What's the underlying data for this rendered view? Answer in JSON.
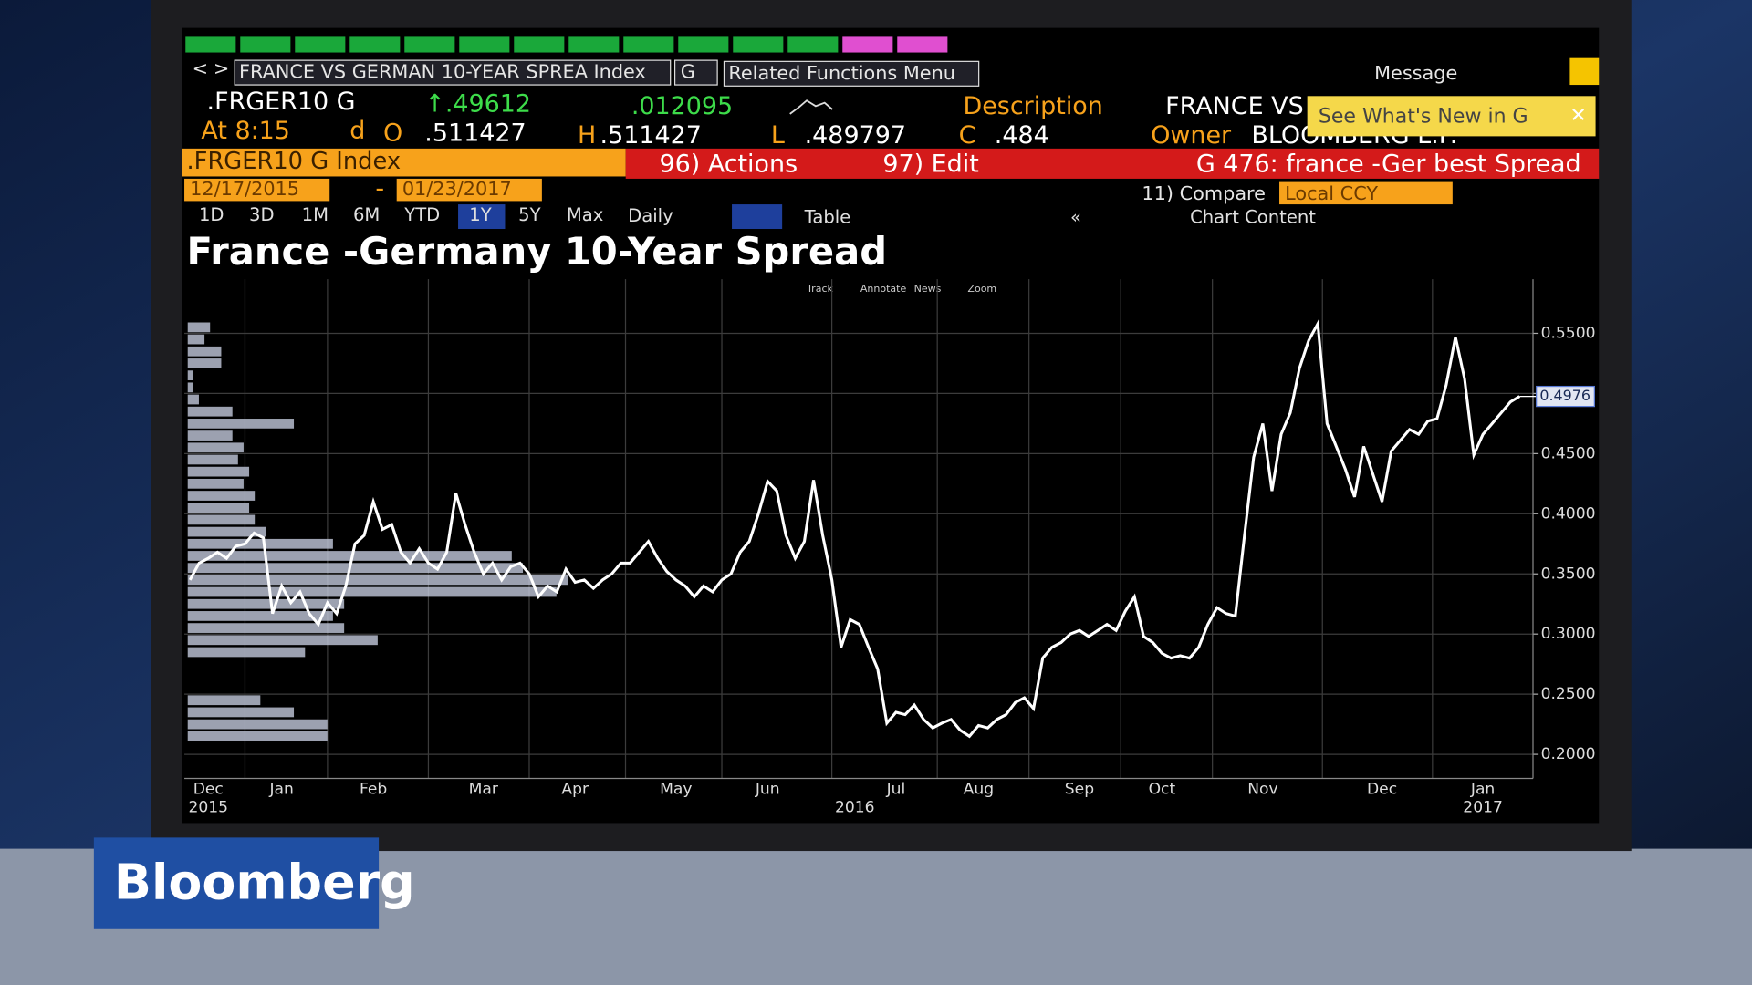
{
  "toolbar": {
    "security": "FRANCE VS GERMAN 10-YEAR SPREA Index",
    "yellow_key": "G",
    "related": "Related Functions Menu",
    "message": "Message"
  },
  "quote": {
    "ticker": ".FRGER10 G",
    "last": "↑.49612",
    "change": ".012095",
    "time": "At 8:15",
    "d": "d",
    "open_label": "O",
    "open": ".511427",
    "high_label": "H",
    "high": ".511427",
    "low_label": "L",
    "low": ".489797",
    "close_label": "C",
    "close": ".484",
    "description_label": "Description",
    "description": "FRANCE VS",
    "owner_label": "Owner",
    "owner": "BLOOMBERG L.P."
  },
  "popup": "See What's New in G",
  "command_bar": {
    "security": ".FRGER10 G Index",
    "actions": "96) Actions",
    "edit": "97) Edit",
    "function": "G 476: france -Ger best Spread"
  },
  "date_range": {
    "start": "12/17/2015",
    "separator": "-",
    "end": "01/23/2017"
  },
  "compare": "11) Compare",
  "currency": "Local CCY",
  "periods": [
    "1D",
    "3D",
    "1M",
    "6M",
    "YTD",
    "1Y",
    "5Y",
    "Max"
  ],
  "frequency": "Daily",
  "table": "Table",
  "collapse": "«",
  "chart_content": "Chart Content",
  "chart_tools": [
    "Track",
    "Annotate",
    "News",
    "Zoom"
  ],
  "brand": "Bloomberg",
  "chart_data": [
    {
      "type": "line",
      "title": "France -Germany 10-Year Spread",
      "color": "#ffffff",
      "grid": true,
      "categories": [
        null,
        null,
        "Dec",
        null,
        null,
        null,
        null,
        null,
        null,
        null,
        "Jan",
        null,
        null,
        null,
        null,
        null,
        null,
        null,
        null,
        null,
        "Feb",
        null,
        null,
        null,
        null,
        null,
        null,
        null,
        null,
        null,
        null,
        null,
        "Mar",
        null,
        null,
        null,
        null,
        null,
        null,
        null,
        null,
        null,
        "Apr",
        null,
        null,
        null,
        null,
        null,
        null,
        null,
        null,
        null,
        null,
        "May",
        null,
        null,
        null,
        null,
        null,
        null,
        null,
        null,
        null,
        "Jun",
        null,
        null,
        null,
        null,
        null,
        null,
        null,
        null,
        null,
        null,
        null,
        null,
        null,
        "Jul",
        null,
        null,
        null,
        null,
        null,
        null,
        null,
        null,
        "Aug",
        null,
        null,
        null,
        null,
        null,
        null,
        null,
        null,
        null,
        null,
        "Sep",
        null,
        null,
        null,
        null,
        null,
        null,
        null,
        null,
        "Oct",
        null,
        null,
        null,
        null,
        null,
        null,
        null,
        null,
        null,
        null,
        "Nov",
        null,
        null,
        null,
        null,
        null,
        null,
        null,
        null,
        null,
        null,
        null,
        null,
        "Dec",
        null,
        null,
        null,
        null,
        null,
        null,
        null,
        null,
        null,
        null,
        "Jan",
        null,
        null,
        null,
        null
      ],
      "x_sublabels": [
        "2015",
        "2016",
        "2017"
      ],
      "values": [
        0.345,
        0.359,
        0.363,
        0.368,
        0.363,
        0.373,
        0.375,
        0.384,
        0.38,
        0.317,
        0.34,
        0.326,
        0.335,
        0.317,
        0.308,
        0.326,
        0.317,
        0.34,
        0.375,
        0.382,
        0.41,
        0.387,
        0.391,
        0.368,
        0.359,
        0.371,
        0.359,
        0.354,
        0.368,
        0.417,
        0.391,
        0.368,
        0.35,
        0.359,
        0.345,
        0.356,
        0.359,
        0.35,
        0.331,
        0.34,
        0.335,
        0.354,
        0.343,
        0.345,
        0.338,
        0.345,
        0.35,
        0.359,
        0.359,
        0.368,
        0.377,
        0.363,
        0.352,
        0.345,
        0.34,
        0.331,
        0.34,
        0.335,
        0.345,
        0.35,
        0.368,
        0.377,
        0.4,
        0.427,
        0.419,
        0.382,
        0.363,
        0.377,
        0.428,
        0.382,
        0.345,
        0.289,
        0.312,
        0.308,
        0.289,
        0.271,
        0.226,
        0.235,
        0.233,
        0.241,
        0.229,
        0.222,
        0.226,
        0.229,
        0.22,
        0.215,
        0.224,
        0.222,
        0.229,
        0.233,
        0.243,
        0.247,
        0.238,
        0.28,
        0.289,
        0.293,
        0.3,
        0.303,
        0.298,
        0.303,
        0.308,
        0.303,
        0.319,
        0.331,
        0.298,
        0.293,
        0.284,
        0.28,
        0.282,
        0.28,
        0.289,
        0.308,
        0.322,
        0.317,
        0.315,
        0.382,
        0.447,
        0.475,
        0.419,
        0.466,
        0.484,
        0.521,
        0.544,
        0.558,
        0.475,
        0.456,
        0.437,
        0.414,
        0.456,
        0.433,
        0.41,
        0.452,
        0.461,
        0.47,
        0.466,
        0.477,
        0.479,
        0.507,
        0.547,
        0.512,
        0.449,
        0.466,
        0.475,
        0.484,
        0.493,
        0.4976
      ],
      "ylim": [
        0.18,
        0.595
      ],
      "yticks": [
        {
          "value": 0.2,
          "label": "0.2000"
        },
        {
          "value": 0.25,
          "label": "0.2500"
        },
        {
          "value": 0.3,
          "label": "0.3000"
        },
        {
          "value": 0.35,
          "label": "0.3500"
        },
        {
          "value": 0.4,
          "label": "0.4000"
        },
        {
          "value": 0.45,
          "label": "0.4500"
        },
        {
          "value": 0.5,
          "label": "0.5000"
        },
        {
          "value": 0.55,
          "label": "0.5500"
        }
      ]
    },
    {
      "type": "histogram",
      "orientation": "horizontal",
      "color": "#c3c9dc",
      "bins": [
        0.2,
        0.21,
        0.22,
        0.23,
        0.24,
        0.25,
        0.26,
        0.27,
        0.28,
        0.29,
        0.3,
        0.31,
        0.32,
        0.33,
        0.34,
        0.35,
        0.36,
        0.37,
        0.38,
        0.39,
        0.4,
        0.41,
        0.42,
        0.43,
        0.44,
        0.45,
        0.46,
        0.47,
        0.48,
        0.49,
        0.5,
        0.51,
        0.52,
        0.53,
        0.54,
        0.55,
        0.56
      ],
      "counts": [
        0,
        25,
        25,
        19,
        13,
        0,
        0,
        0,
        21,
        34,
        28,
        26,
        28,
        66,
        68,
        60,
        58,
        26,
        14,
        12,
        11,
        12,
        10,
        11,
        9,
        10,
        8,
        19,
        8,
        2,
        1,
        1,
        6,
        6,
        3,
        4
      ],
      "ylim": [
        0.18,
        0.595
      ]
    }
  ]
}
